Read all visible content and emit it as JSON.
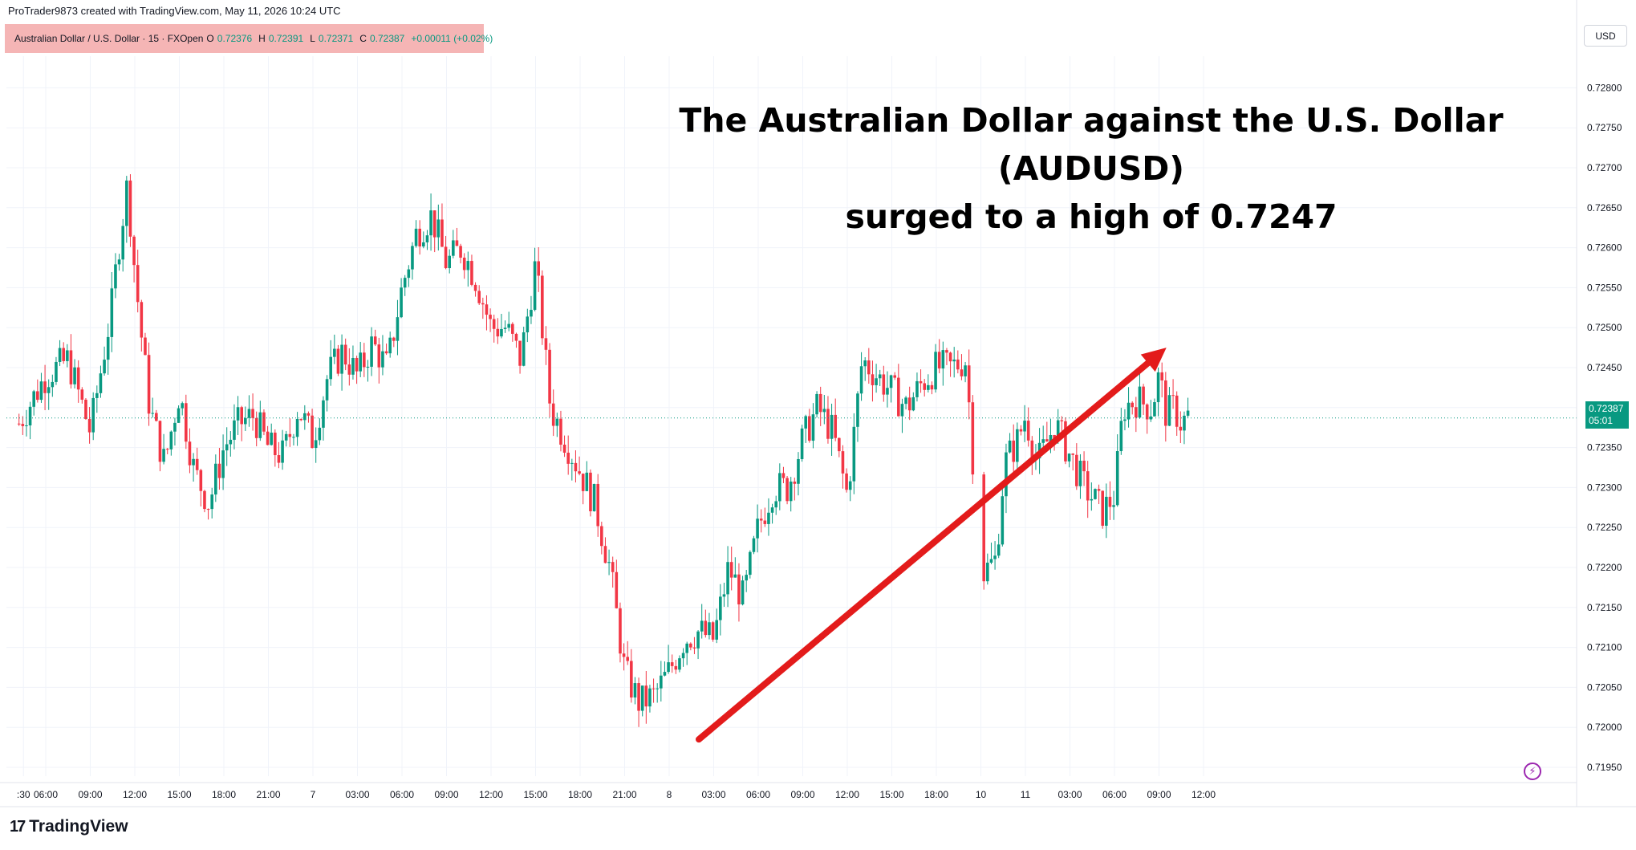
{
  "header": {
    "credit": "ProTrader9873 created with TradingView.com, May 11, 2026 10:24 UTC"
  },
  "symbol_bar": {
    "name": "Australian Dollar / U.S. Dollar · 15 · FXOpen",
    "open_label": "O",
    "open": "0.72376",
    "high_label": "H",
    "high": "0.72391",
    "low_label": "L",
    "low": "0.72371",
    "close_label": "C",
    "close": "0.72387",
    "change": "+0.00011 (+0.02%)"
  },
  "currency": "USD",
  "headline": {
    "line1": "The Australian Dollar against the U.S. Dollar (AUDUSD)",
    "line2": "surged to a high of 0.7247"
  },
  "price_tag": {
    "price": "0.72387",
    "countdown": "05:01"
  },
  "logo": {
    "text": "TradingView",
    "icon": "tradingview-logo-icon"
  },
  "icons": {
    "flash": "flash-icon"
  },
  "colors": {
    "up": "#089981",
    "down": "#f23645",
    "arrow": "#e31b1b",
    "background": "#ffffff",
    "price_line": "#089981"
  },
  "chart_data": {
    "type": "candlestick",
    "ylim": [
      0.7193,
      0.7283
    ],
    "y_ticks": [
      "0.72800",
      "0.72750",
      "0.72700",
      "0.72650",
      "0.72600",
      "0.72550",
      "0.72500",
      "0.72450",
      "0.72400",
      "0.72350",
      "0.72300",
      "0.72250",
      "0.72200",
      "0.72150",
      "0.72100",
      "0.72050",
      "0.72000",
      "0.71950"
    ],
    "x_ticks": [
      ":30",
      "06:00",
      "09:00",
      "12:00",
      "15:00",
      "18:00",
      "21:00",
      "7",
      "03:00",
      "06:00",
      "09:00",
      "12:00",
      "15:00",
      "18:00",
      "21:00",
      "8",
      "03:00",
      "06:00",
      "09:00",
      "12:00",
      "15:00",
      "18:00",
      "10",
      "11",
      "03:00",
      "06:00",
      "09:00",
      "12:00"
    ],
    "x_tick_hours": [
      -1.5,
      0,
      3,
      6,
      9,
      12,
      15,
      18,
      21,
      24,
      27,
      30,
      33,
      36,
      39,
      42,
      45,
      48,
      51,
      54,
      57,
      60,
      63,
      66,
      69,
      72,
      75,
      78
    ],
    "current_price": 0.72387,
    "anchors": [
      [
        -1.8,
        0.7238
      ],
      [
        0,
        0.7244
      ],
      [
        1.5,
        0.7246
      ],
      [
        3,
        0.7237
      ],
      [
        4.4,
        0.7252
      ],
      [
        4.9,
        0.726
      ],
      [
        5.5,
        0.7268
      ],
      [
        6,
        0.7257
      ],
      [
        6.5,
        0.7248
      ],
      [
        7,
        0.724
      ],
      [
        8,
        0.7233
      ],
      [
        9,
        0.7242
      ],
      [
        10,
        0.7232
      ],
      [
        11,
        0.7228
      ],
      [
        12,
        0.7235
      ],
      [
        13,
        0.7238
      ],
      [
        14,
        0.7239
      ],
      [
        15,
        0.7235
      ],
      [
        16,
        0.7234
      ],
      [
        17,
        0.724
      ],
      [
        18,
        0.7236
      ],
      [
        19,
        0.7244
      ],
      [
        20,
        0.7247
      ],
      [
        21,
        0.7244
      ],
      [
        22,
        0.7248
      ],
      [
        23,
        0.7245
      ],
      [
        24,
        0.7255
      ],
      [
        25,
        0.7262
      ],
      [
        26,
        0.7264
      ],
      [
        27,
        0.7258
      ],
      [
        28,
        0.726
      ],
      [
        29,
        0.7256
      ],
      [
        30,
        0.725
      ],
      [
        31,
        0.725
      ],
      [
        32,
        0.7246
      ],
      [
        33,
        0.7258
      ],
      [
        34,
        0.724
      ],
      [
        35,
        0.7236
      ],
      [
        36,
        0.7232
      ],
      [
        37,
        0.7228
      ],
      [
        38,
        0.722
      ],
      [
        39,
        0.7207
      ],
      [
        40,
        0.7203
      ],
      [
        41,
        0.7204
      ],
      [
        42,
        0.7207
      ],
      [
        43,
        0.7211
      ],
      [
        44,
        0.7212
      ],
      [
        45,
        0.7211
      ],
      [
        46,
        0.722
      ],
      [
        47,
        0.7216
      ],
      [
        48,
        0.7225
      ],
      [
        49,
        0.723
      ],
      [
        50,
        0.723
      ],
      [
        51,
        0.7236
      ],
      [
        52,
        0.724
      ],
      [
        53,
        0.7237
      ],
      [
        54,
        0.7229
      ],
      [
        55,
        0.7246
      ],
      [
        56,
        0.7244
      ],
      [
        57,
        0.7242
      ],
      [
        58,
        0.724
      ],
      [
        59,
        0.7243
      ],
      [
        60,
        0.7245
      ],
      [
        61,
        0.7245
      ],
      [
        62,
        0.7246
      ],
      [
        63,
        0.7219
      ],
      [
        64,
        0.7221
      ],
      [
        64.6,
        0.7233
      ],
      [
        65.5,
        0.7236
      ],
      [
        66,
        0.7239
      ],
      [
        66.8,
        0.7233
      ],
      [
        68,
        0.7238
      ],
      [
        69,
        0.7234
      ],
      [
        70,
        0.723
      ],
      [
        71.2,
        0.7227
      ],
      [
        72,
        0.7229
      ],
      [
        72.6,
        0.724
      ],
      [
        73.5,
        0.7241
      ],
      [
        74.5,
        0.724
      ],
      [
        75,
        0.7244
      ],
      [
        75.5,
        0.7239
      ],
      [
        76,
        0.724
      ],
      [
        76.5,
        0.7238
      ],
      [
        77,
        0.7239
      ]
    ],
    "annotation": {
      "type": "arrow",
      "from": [
        44.0,
        0.71985
      ],
      "to": [
        75.5,
        0.72475
      ]
    }
  }
}
